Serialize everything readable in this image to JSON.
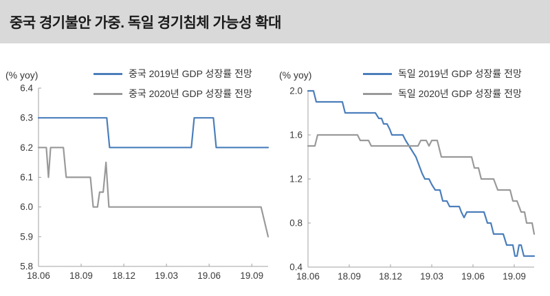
{
  "header": {
    "title": "중국 경기불안 가중. 독일 경기침체 가능성 확대"
  },
  "colors": {
    "series_blue": "#4a7ebb",
    "series_gray": "#999999",
    "axis": "#a0a0a0",
    "header_bg": "#d9d9d9"
  },
  "chart_data": [
    {
      "type": "line",
      "id": "china-gdp-forecast",
      "unit_label": "(% yoy)",
      "x_range": [
        0,
        16.15
      ],
      "y_range": [
        5.8,
        6.4
      ],
      "axis_color": "#a0a0a0",
      "grid": false,
      "legend_position": "top",
      "y_ticks": [
        {
          "v": 5.8,
          "label": "5.8"
        },
        {
          "v": 5.9,
          "label": "5.9"
        },
        {
          "v": 6.0,
          "label": "6.0"
        },
        {
          "v": 6.1,
          "label": "6.1"
        },
        {
          "v": 6.2,
          "label": "6.2"
        },
        {
          "v": 6.3,
          "label": "6.3"
        },
        {
          "v": 6.4,
          "label": "6.4"
        }
      ],
      "x_ticks": [
        {
          "v": 0,
          "label": "18.06"
        },
        {
          "v": 3,
          "label": "18.09"
        },
        {
          "v": 6,
          "label": "18.12"
        },
        {
          "v": 9,
          "label": "19.03"
        },
        {
          "v": 12,
          "label": "19.06"
        },
        {
          "v": 15,
          "label": "19.09"
        }
      ],
      "series": [
        {
          "name": "중국 2019년 GDP 성장률 전망",
          "color": "#4a7ebb",
          "points": [
            [
              0,
              6.3
            ],
            [
              4.8,
              6.3
            ],
            [
              5.0,
              6.2
            ],
            [
              10.75,
              6.2
            ],
            [
              10.95,
              6.3
            ],
            [
              12.3,
              6.3
            ],
            [
              12.5,
              6.2
            ],
            [
              16.15,
              6.2
            ]
          ]
        },
        {
          "name": "중국 2020년 GDP 성장률 전망",
          "color": "#999999",
          "points": [
            [
              0,
              6.2
            ],
            [
              0.55,
              6.2
            ],
            [
              0.7,
              6.1
            ],
            [
              0.85,
              6.2
            ],
            [
              1.75,
              6.2
            ],
            [
              1.95,
              6.1
            ],
            [
              3.65,
              6.1
            ],
            [
              3.85,
              6.0
            ],
            [
              4.15,
              6.0
            ],
            [
              4.3,
              6.05
            ],
            [
              4.55,
              6.05
            ],
            [
              4.75,
              6.15
            ],
            [
              4.95,
              6.0
            ],
            [
              15.65,
              6.0
            ],
            [
              16.15,
              5.9
            ]
          ]
        }
      ]
    },
    {
      "type": "line",
      "id": "germany-gdp-forecast",
      "unit_label": "(% yoy)",
      "x_range": [
        0,
        16.45
      ],
      "y_range": [
        0.4,
        2.0
      ],
      "axis_color": "#a0a0a0",
      "grid": false,
      "legend_position": "top",
      "y_ticks": [
        {
          "v": 0.4,
          "label": "0.4"
        },
        {
          "v": 0.8,
          "label": "0.8"
        },
        {
          "v": 1.2,
          "label": "1.2"
        },
        {
          "v": 1.6,
          "label": "1.6"
        },
        {
          "v": 2.0,
          "label": "2.0"
        }
      ],
      "x_ticks": [
        {
          "v": 0,
          "label": "18.06"
        },
        {
          "v": 3,
          "label": "18.09"
        },
        {
          "v": 6,
          "label": "18.12"
        },
        {
          "v": 9,
          "label": "19.03"
        },
        {
          "v": 12,
          "label": "19.06"
        },
        {
          "v": 15,
          "label": "19.09"
        }
      ],
      "series": [
        {
          "name": "독일 2019년 GDP 성장률 전망",
          "color": "#4a7ebb",
          "points": [
            [
              0,
              2.0
            ],
            [
              0.4,
              2.0
            ],
            [
              0.6,
              1.9
            ],
            [
              2.5,
              1.9
            ],
            [
              2.7,
              1.8
            ],
            [
              4.9,
              1.8
            ],
            [
              5.15,
              1.75
            ],
            [
              5.35,
              1.75
            ],
            [
              5.5,
              1.7
            ],
            [
              5.75,
              1.7
            ],
            [
              5.95,
              1.65
            ],
            [
              6.1,
              1.6
            ],
            [
              6.9,
              1.6
            ],
            [
              7.1,
              1.55
            ],
            [
              7.35,
              1.5
            ],
            [
              7.6,
              1.45
            ],
            [
              7.85,
              1.4
            ],
            [
              8.3,
              1.25
            ],
            [
              8.5,
              1.2
            ],
            [
              8.8,
              1.2
            ],
            [
              9.0,
              1.15
            ],
            [
              9.25,
              1.1
            ],
            [
              9.6,
              1.1
            ],
            [
              9.8,
              1.0
            ],
            [
              10.1,
              1.0
            ],
            [
              10.3,
              0.95
            ],
            [
              11.0,
              0.95
            ],
            [
              11.15,
              0.9
            ],
            [
              11.35,
              0.85
            ],
            [
              11.55,
              0.9
            ],
            [
              12.8,
              0.9
            ],
            [
              13.05,
              0.8
            ],
            [
              13.3,
              0.8
            ],
            [
              13.5,
              0.7
            ],
            [
              14.2,
              0.7
            ],
            [
              14.45,
              0.6
            ],
            [
              14.9,
              0.6
            ],
            [
              15.05,
              0.5
            ],
            [
              15.2,
              0.5
            ],
            [
              15.35,
              0.6
            ],
            [
              15.5,
              0.6
            ],
            [
              15.7,
              0.5
            ],
            [
              16.45,
              0.5
            ]
          ]
        },
        {
          "name": "독일 2020년 GDP 성장률 전망",
          "color": "#999999",
          "points": [
            [
              0,
              1.5
            ],
            [
              0.5,
              1.5
            ],
            [
              0.7,
              1.6
            ],
            [
              3.6,
              1.6
            ],
            [
              3.8,
              1.55
            ],
            [
              4.4,
              1.55
            ],
            [
              4.6,
              1.5
            ],
            [
              8.0,
              1.5
            ],
            [
              8.2,
              1.55
            ],
            [
              8.6,
              1.55
            ],
            [
              8.8,
              1.5
            ],
            [
              9.0,
              1.55
            ],
            [
              9.4,
              1.55
            ],
            [
              9.7,
              1.4
            ],
            [
              11.9,
              1.4
            ],
            [
              12.1,
              1.3
            ],
            [
              12.4,
              1.3
            ],
            [
              12.6,
              1.2
            ],
            [
              13.5,
              1.2
            ],
            [
              13.8,
              1.1
            ],
            [
              14.7,
              1.1
            ],
            [
              14.9,
              1.0
            ],
            [
              15.2,
              1.0
            ],
            [
              15.35,
              0.95
            ],
            [
              15.5,
              0.9
            ],
            [
              15.75,
              0.9
            ],
            [
              15.9,
              0.8
            ],
            [
              16.3,
              0.8
            ],
            [
              16.45,
              0.7
            ]
          ]
        }
      ]
    }
  ]
}
